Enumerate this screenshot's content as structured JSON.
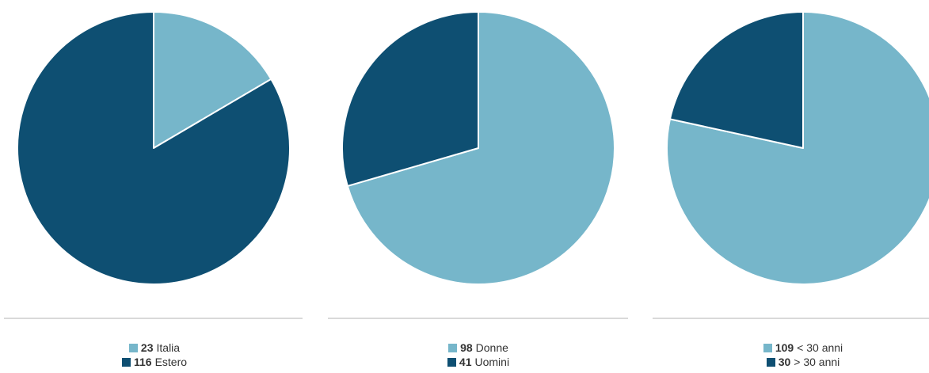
{
  "colors": {
    "light": "#76b6ca",
    "dark": "#0e4f72",
    "divider": "#d9d9d9"
  },
  "chart_data": [
    {
      "type": "pie",
      "categories": [
        "Italia",
        "Estero"
      ],
      "values": [
        23,
        116
      ],
      "colors": [
        "#76b6ca",
        "#0e4f72"
      ],
      "legend": [
        {
          "value": "23",
          "label": "Italia"
        },
        {
          "value": "116",
          "label": "Estero"
        }
      ]
    },
    {
      "type": "pie",
      "categories": [
        "Donne",
        "Uomini"
      ],
      "values": [
        98,
        41
      ],
      "colors": [
        "#76b6ca",
        "#0e4f72"
      ],
      "legend": [
        {
          "value": "98",
          "label": "Donne"
        },
        {
          "value": "41",
          "label": "Uomini"
        }
      ]
    },
    {
      "type": "pie",
      "categories": [
        "< 30 anni",
        "> 30 anni"
      ],
      "values": [
        109,
        30
      ],
      "colors": [
        "#76b6ca",
        "#0e4f72"
      ],
      "legend": [
        {
          "value": "109",
          "label": "< 30 anni"
        },
        {
          "value": "30",
          "label": "> 30 anni"
        }
      ]
    }
  ]
}
